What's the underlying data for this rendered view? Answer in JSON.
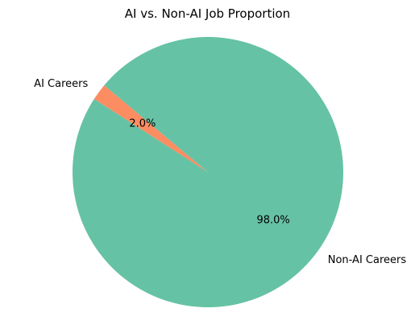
{
  "chart_data": {
    "type": "pie",
    "title": "AI vs. Non-AI Job Proportion",
    "slices": [
      {
        "label": "AI Careers",
        "value": 2.0,
        "pct_label": "2.0%",
        "color": "#fc8d62"
      },
      {
        "label": "Non-AI Careers",
        "value": 98.0,
        "pct_label": "98.0%",
        "color": "#66c2a5"
      }
    ],
    "start_angle_deg": 140,
    "direction": "counterclockwise",
    "legend": "none"
  }
}
